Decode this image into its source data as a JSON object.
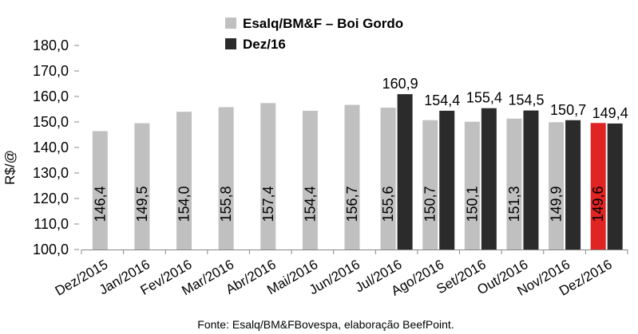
{
  "chart_data": {
    "type": "bar",
    "ylabel": "R$/@",
    "ylim": [
      100,
      180
    ],
    "yticks": [
      "100,0",
      "110,0",
      "120,0",
      "130,0",
      "140,0",
      "150,0",
      "160,0",
      "170,0",
      "180,0"
    ],
    "ytick_values": [
      100,
      110,
      120,
      130,
      140,
      150,
      160,
      170,
      180
    ],
    "legend_position": "top-center",
    "categories": [
      "Dez/2015",
      "Jan/2016",
      "Fev/2016",
      "Mar/2016",
      "Abr/2016",
      "Mai/2016",
      "Jun/2016",
      "Jul/2016",
      "Ago/2016",
      "Set/2016",
      "Out/2016",
      "Nov/2016",
      "Dez/2016"
    ],
    "series": [
      {
        "name": "Esalq/BM&F – Boi Gordo",
        "color": "#c0c0c0",
        "highlight_color": "#e02424",
        "highlight_index": 12,
        "values": [
          146.4,
          149.5,
          154.0,
          155.8,
          157.4,
          154.4,
          156.7,
          155.6,
          150.7,
          150.1,
          151.3,
          149.9,
          149.6
        ],
        "labels": [
          "146,4",
          "149,5",
          "154,0",
          "155,8",
          "157,4",
          "154,4",
          "156,7",
          "155,6",
          "150,7",
          "150,1",
          "151,3",
          "149,9",
          "149,6"
        ]
      },
      {
        "name": "Dez/16",
        "color": "#2b2b2b",
        "values": [
          null,
          null,
          null,
          null,
          null,
          null,
          null,
          160.9,
          154.4,
          155.4,
          154.5,
          150.7,
          149.4
        ],
        "labels": [
          null,
          null,
          null,
          null,
          null,
          null,
          null,
          "160,9",
          "154,4",
          "155,4",
          "154,5",
          "150,7",
          "149,4"
        ]
      }
    ],
    "source": "Fonte: Esalq/BM&FBovespa, elaboração BeefPoint."
  }
}
